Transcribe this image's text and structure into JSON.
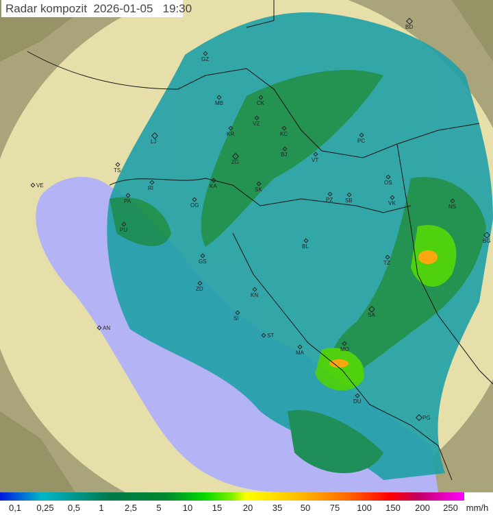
{
  "title": "Radar kompozit  2026-01-05   19:30",
  "colors": {
    "sea": "#b3b3f5",
    "land": "#e6dfaa",
    "terrain": "#8e8c5e",
    "outside": "#a9a47a",
    "weak": "#1f6fe0",
    "light": "#20a0a8",
    "moderate": "#108a48",
    "heavy": "#40d000",
    "intense": "#ffa000"
  },
  "cities": [
    "GZ",
    "MB",
    "CK",
    "VZ",
    "KR",
    "KC",
    "LJ",
    "BJ",
    "VT",
    "PC",
    "ZG",
    "TS",
    "KA",
    "SK",
    "VE",
    "RI",
    "OG",
    "PA",
    "PU",
    "PZ",
    "SB",
    "OS",
    "VK",
    "NS",
    "BG",
    "BL",
    "GS",
    "TZ",
    "ZD",
    "KN",
    "SA",
    "AN",
    "SI",
    "ST",
    "MA",
    "MO",
    "DU",
    "PG",
    "BD"
  ],
  "legend": {
    "labels": [
      "0,1",
      "0,25",
      "0,5",
      "1",
      "2,5",
      "5",
      "10",
      "15",
      "20",
      "35",
      "50",
      "75",
      "100",
      "150",
      "200",
      "250"
    ],
    "unit": "mm/h"
  }
}
